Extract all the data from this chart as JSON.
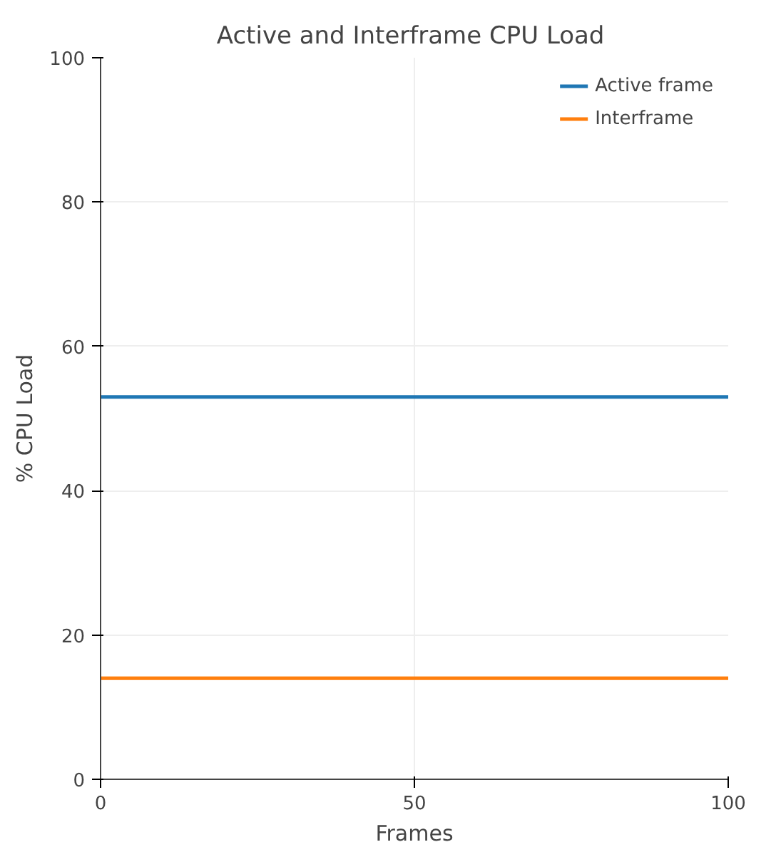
{
  "chart_data": {
    "type": "line",
    "title": "Active and Interframe  CPU Load",
    "xlabel": "Frames",
    "ylabel": "% CPU Load",
    "x": [
      0,
      100
    ],
    "series": [
      {
        "name": "Active frame",
        "color": "#1f77b4",
        "values": [
          53,
          53
        ]
      },
      {
        "name": "Interframe",
        "color": "#ff7f0e",
        "values": [
          14,
          14
        ]
      }
    ],
    "xlim": [
      0,
      100
    ],
    "xticks": [
      0,
      50,
      100
    ],
    "ylim": [
      0,
      100
    ],
    "yticks": [
      0,
      20,
      40,
      60,
      80,
      100
    ],
    "grid": true,
    "legend": "top right",
    "marker": "none",
    "line_style": "solid"
  }
}
